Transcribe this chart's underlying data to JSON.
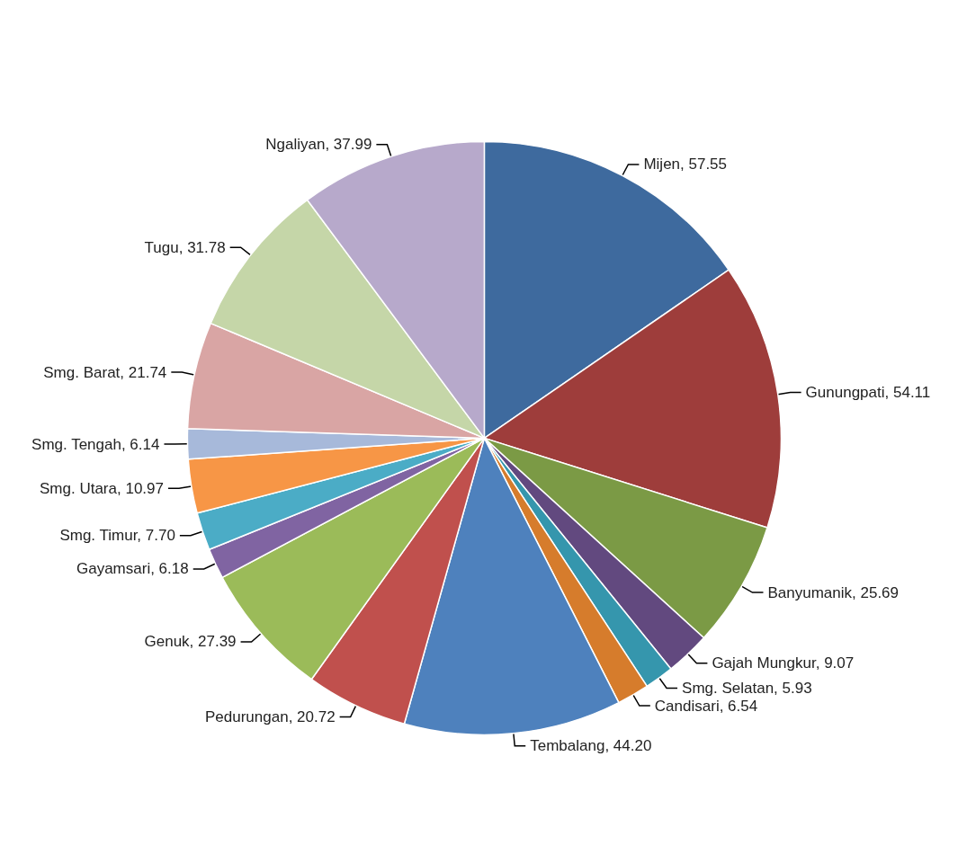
{
  "chart_data": {
    "type": "pie",
    "categories": [
      "Mijen",
      "Gunungpati",
      "Banyumanik",
      "Gajah Mungkur",
      "Smg. Selatan",
      "Candisari",
      "Tembalang",
      "Pedurungan",
      "Genuk",
      "Gayamsari",
      "Smg. Timur",
      "Smg. Utara",
      "Smg. Tengah",
      "Smg. Barat",
      "Tugu",
      "Ngaliyan"
    ],
    "values": [
      57.55,
      54.11,
      25.69,
      9.07,
      5.93,
      6.54,
      44.2,
      20.72,
      27.39,
      6.18,
      7.7,
      10.97,
      6.14,
      21.74,
      31.78,
      37.99
    ],
    "value_labels": [
      "57.55",
      "54.11",
      "25.69",
      "9.07",
      "5.93",
      "6.54",
      "44.20",
      "20.72",
      "27.39",
      "6.18",
      "7.70",
      "10.97",
      "6.14",
      "21.74",
      "31.78",
      "37.99"
    ],
    "colors": [
      "#3e6a9e",
      "#9e3d3b",
      "#7b9a45",
      "#62497f",
      "#3596ad",
      "#d67c2c",
      "#4e81bd",
      "#c0504d",
      "#9bbb59",
      "#8064a2",
      "#4bacc6",
      "#f79646",
      "#a7b9da",
      "#d9a5a4",
      "#c5d6a8",
      "#b7a9cb"
    ],
    "legend": false
  }
}
